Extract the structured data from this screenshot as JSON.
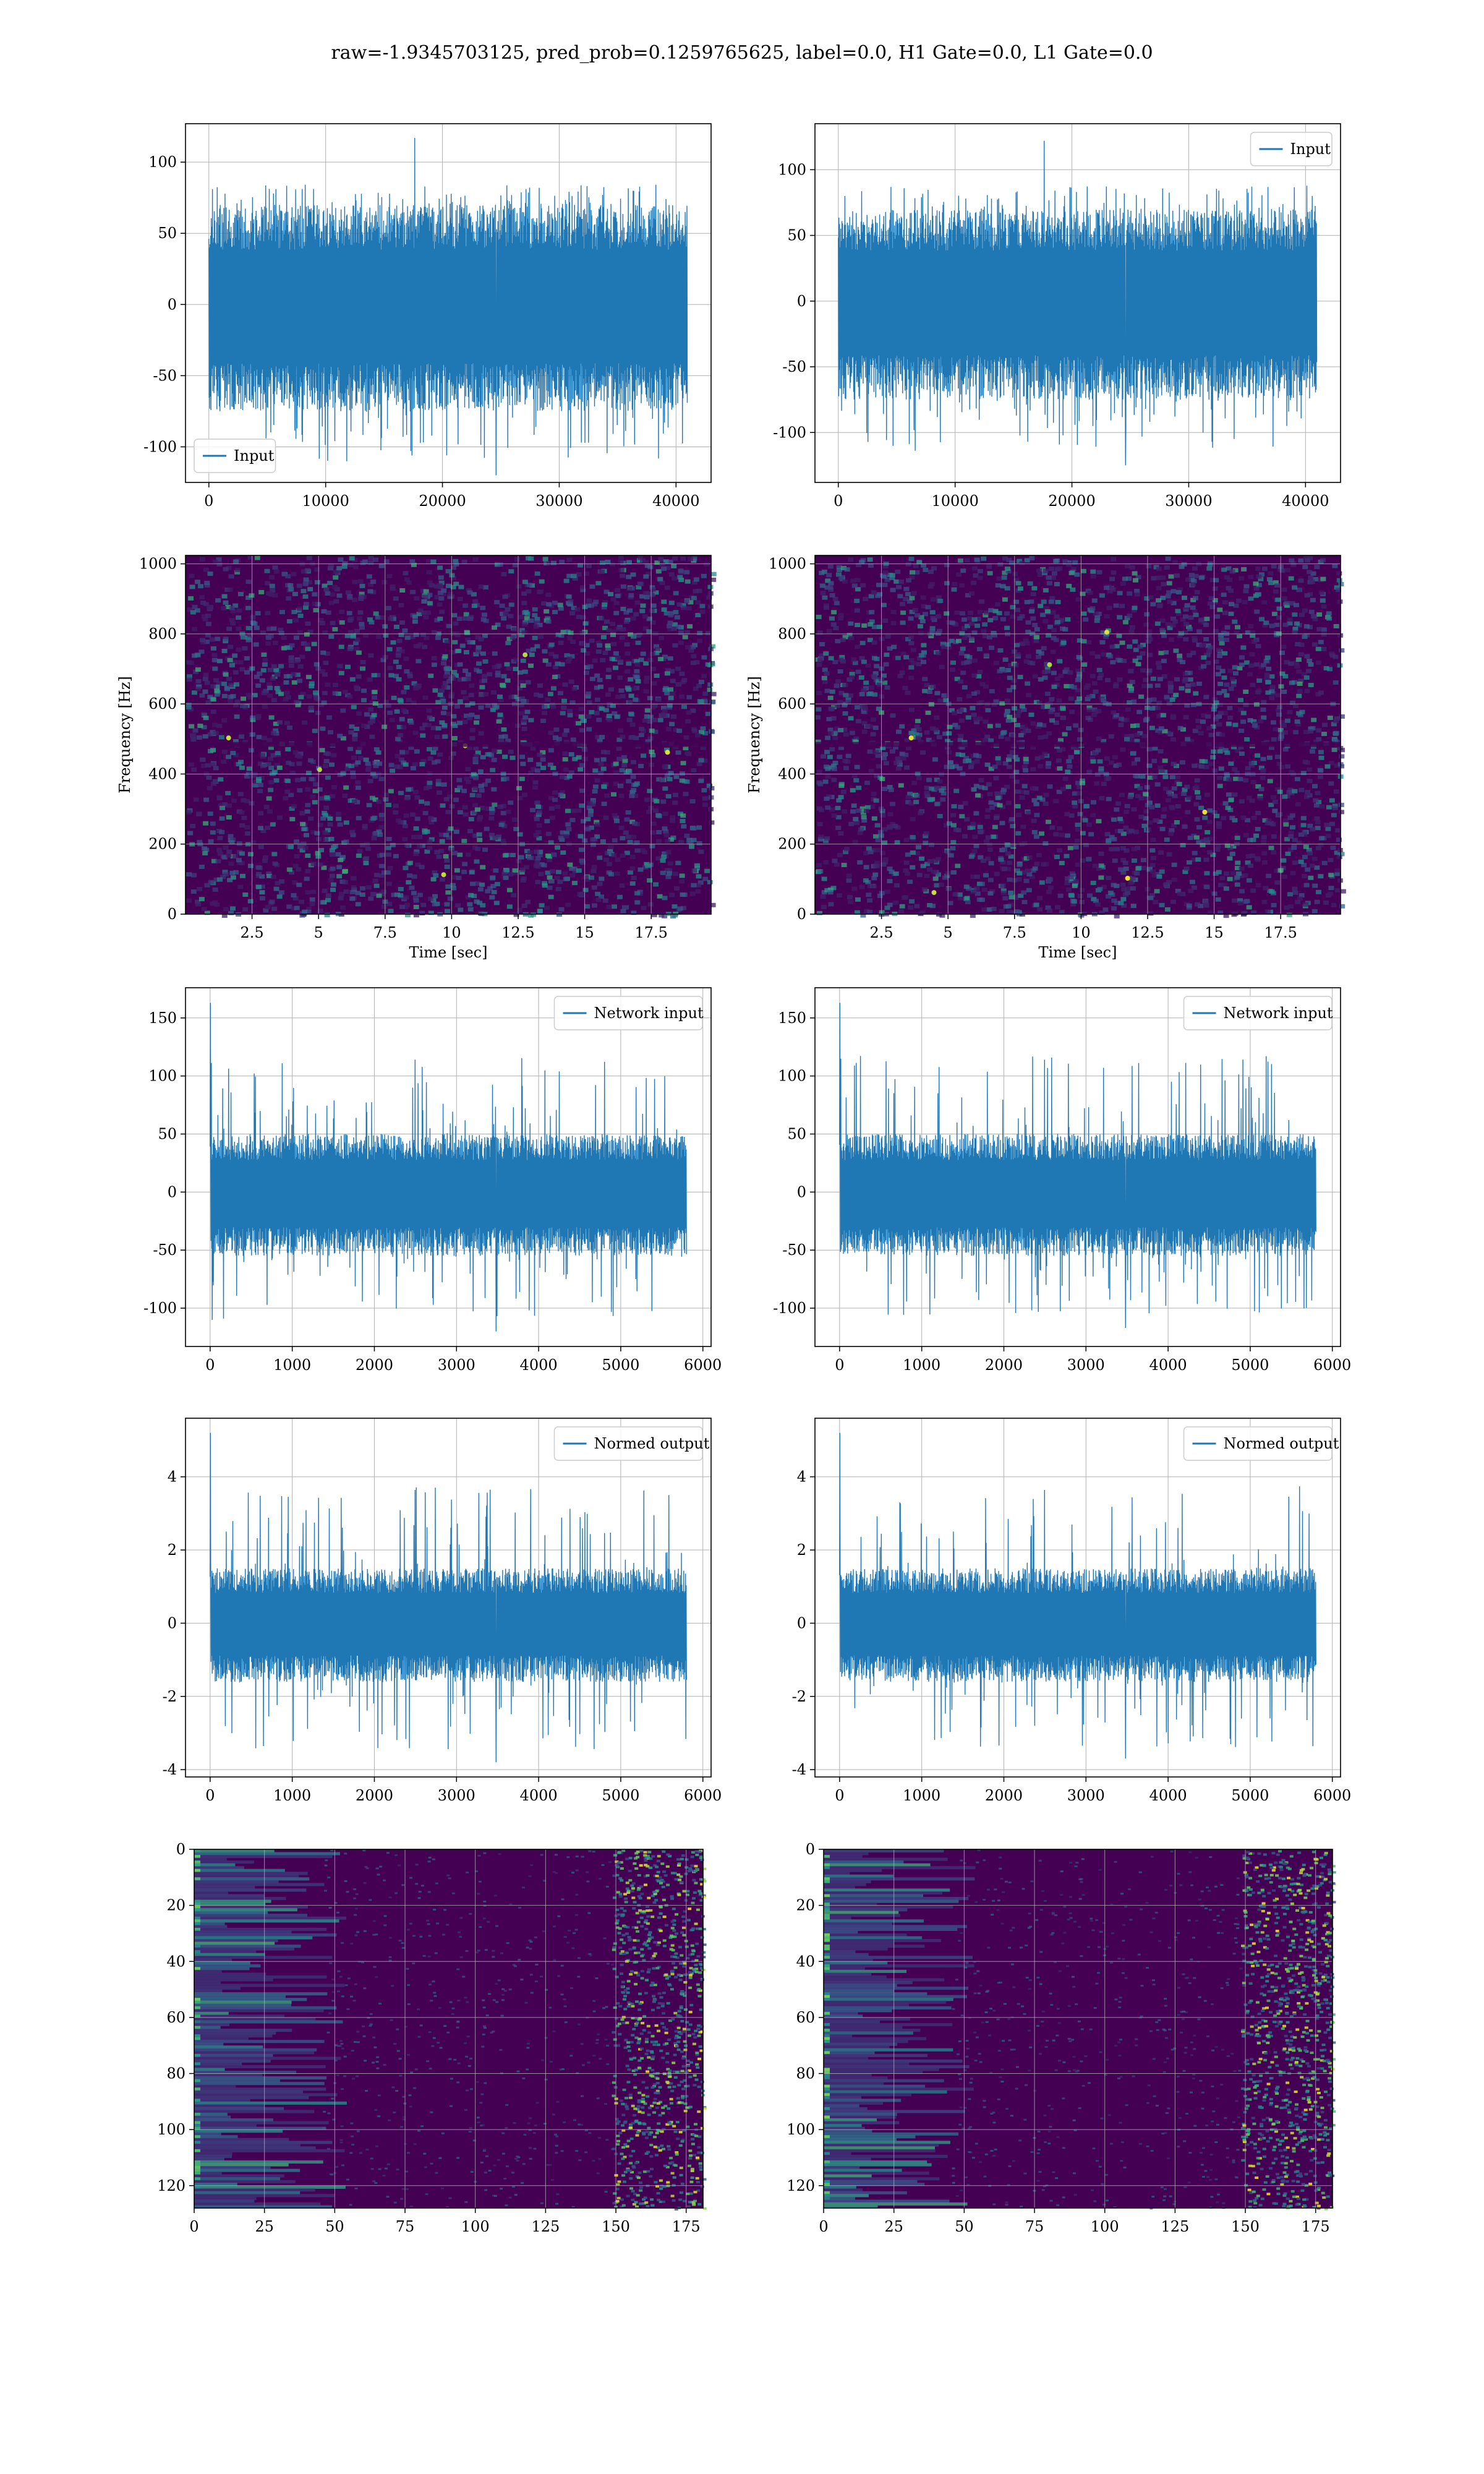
{
  "title": "raw=-1.9345703125, pred_prob=0.1259765625, label=0.0, H1 Gate=0.0, L1 Gate=0.0",
  "colors": {
    "line": "#1f77b4",
    "grid": "#b0b0b0",
    "viridis_low": "#440154",
    "viridis_high": "#fde725"
  },
  "chart_data": [
    {
      "id": "row1-left",
      "type": "line",
      "title": "",
      "xlabel": "",
      "ylabel": "",
      "series": [
        {
          "name": "Input",
          "x_range": [
            0,
            40960
          ],
          "y_typical": [
            -75,
            70
          ],
          "y_min": -120,
          "y_max": 117
        }
      ],
      "xlim": [
        -2000,
        43000
      ],
      "ylim": [
        -125,
        127
      ],
      "xticks": [
        0,
        10000,
        20000,
        30000,
        40000
      ],
      "yticks": [
        -100,
        -50,
        0,
        50,
        100
      ],
      "legend": "lower-left",
      "grid": true
    },
    {
      "id": "row1-right",
      "type": "line",
      "title": "",
      "xlabel": "",
      "ylabel": "",
      "series": [
        {
          "name": "Input",
          "x_range": [
            0,
            40960
          ],
          "y_typical": [
            -75,
            70
          ],
          "y_min": -125,
          "y_max": 122
        }
      ],
      "xlim": [
        -2000,
        43000
      ],
      "ylim": [
        -138,
        135
      ],
      "xticks": [
        0,
        10000,
        20000,
        30000,
        40000
      ],
      "yticks": [
        -100,
        -50,
        0,
        50,
        100
      ],
      "legend": "upper-right",
      "grid": true
    },
    {
      "id": "row2-left",
      "type": "heatmap",
      "title": "",
      "xlabel": "Time [sec]",
      "ylabel": "Frequency [Hz]",
      "xlim": [
        0,
        19.75
      ],
      "ylim": [
        0,
        1024
      ],
      "xticks": [
        2.5,
        5.0,
        7.5,
        10.0,
        12.5,
        15.0,
        17.5
      ],
      "yticks": [
        0,
        200,
        400,
        600,
        800,
        1000
      ],
      "colormap": "viridis",
      "grid": true
    },
    {
      "id": "row2-right",
      "type": "heatmap",
      "title": "",
      "xlabel": "Time [sec]",
      "ylabel": "Frequency [Hz]",
      "xlim": [
        0,
        19.75
      ],
      "ylim": [
        0,
        1024
      ],
      "xticks": [
        2.5,
        5.0,
        7.5,
        10.0,
        12.5,
        15.0,
        17.5
      ],
      "yticks": [
        0,
        200,
        400,
        600,
        800,
        1000
      ],
      "colormap": "viridis",
      "grid": true
    },
    {
      "id": "row3-left",
      "type": "line",
      "title": "",
      "xlabel": "",
      "ylabel": "",
      "series": [
        {
          "name": "Network input",
          "x_range": [
            0,
            5800
          ],
          "y_typical": [
            -55,
            50
          ],
          "y_min": -120,
          "y_max": 163
        }
      ],
      "xlim": [
        -300,
        6100
      ],
      "ylim": [
        -133,
        176
      ],
      "xticks": [
        0,
        1000,
        2000,
        3000,
        4000,
        5000,
        6000
      ],
      "yticks": [
        -100,
        -50,
        0,
        50,
        100,
        150
      ],
      "legend": "upper-right",
      "grid": true
    },
    {
      "id": "row3-right",
      "type": "line",
      "title": "",
      "xlabel": "",
      "ylabel": "",
      "series": [
        {
          "name": "Network input",
          "x_range": [
            0,
            5800
          ],
          "y_typical": [
            -55,
            50
          ],
          "y_min": -117,
          "y_max": 163
        }
      ],
      "xlim": [
        -300,
        6100
      ],
      "ylim": [
        -133,
        176
      ],
      "xticks": [
        0,
        1000,
        2000,
        3000,
        4000,
        5000,
        6000
      ],
      "yticks": [
        -100,
        -50,
        0,
        50,
        100,
        150
      ],
      "legend": "upper-right",
      "grid": true
    },
    {
      "id": "row4-left",
      "type": "line",
      "title": "",
      "xlabel": "",
      "ylabel": "",
      "series": [
        {
          "name": "Normed output",
          "x_range": [
            0,
            5800
          ],
          "y_typical": [
            -1.6,
            1.5
          ],
          "y_min": -3.8,
          "y_max": 5.2
        }
      ],
      "xlim": [
        -300,
        6100
      ],
      "ylim": [
        -4.2,
        5.6
      ],
      "xticks": [
        0,
        1000,
        2000,
        3000,
        4000,
        5000,
        6000
      ],
      "yticks": [
        -4,
        -2,
        0,
        2,
        4
      ],
      "legend": "upper-right",
      "grid": true
    },
    {
      "id": "row4-right",
      "type": "line",
      "title": "",
      "xlabel": "",
      "ylabel": "",
      "series": [
        {
          "name": "Normed output",
          "x_range": [
            0,
            5800
          ],
          "y_typical": [
            -1.6,
            1.5
          ],
          "y_min": -3.7,
          "y_max": 5.2
        }
      ],
      "xlim": [
        -300,
        6100
      ],
      "ylim": [
        -4.2,
        5.6
      ],
      "xticks": [
        0,
        1000,
        2000,
        3000,
        4000,
        5000,
        6000
      ],
      "yticks": [
        -4,
        -2,
        0,
        2,
        4
      ],
      "legend": "upper-right",
      "grid": true
    },
    {
      "id": "row5-left",
      "type": "heatmap",
      "title": "",
      "xlabel": "",
      "ylabel": "",
      "xlim": [
        0,
        181
      ],
      "ylim": [
        128,
        0
      ],
      "xticks": [
        0,
        25,
        50,
        75,
        100,
        125,
        150,
        175
      ],
      "yticks": [
        0,
        20,
        40,
        60,
        80,
        100,
        120
      ],
      "colormap": "viridis",
      "grid": true
    },
    {
      "id": "row5-right",
      "type": "heatmap",
      "title": "",
      "xlabel": "",
      "ylabel": "",
      "xlim": [
        0,
        181
      ],
      "ylim": [
        128,
        0
      ],
      "xticks": [
        0,
        25,
        50,
        75,
        100,
        125,
        150,
        175
      ],
      "yticks": [
        0,
        20,
        40,
        60,
        80,
        100,
        120
      ],
      "colormap": "viridis",
      "grid": true
    }
  ]
}
